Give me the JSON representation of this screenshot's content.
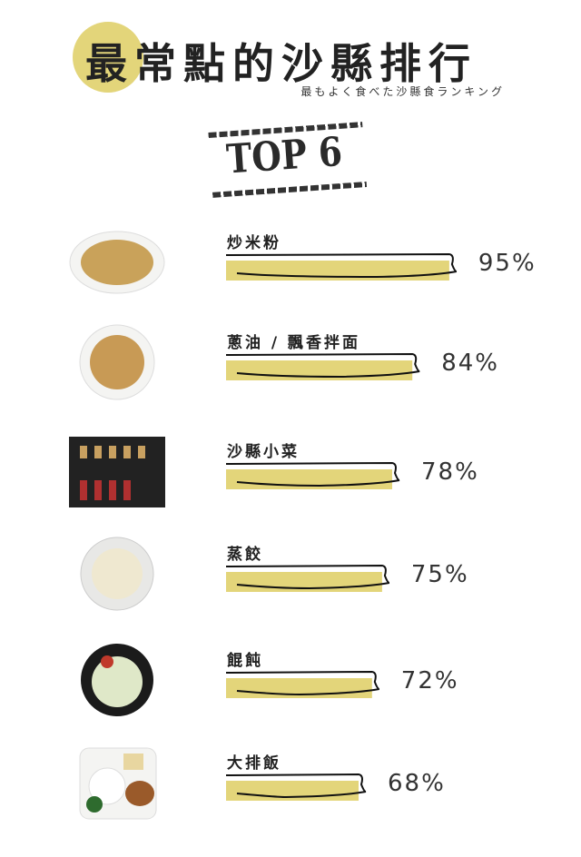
{
  "header": {
    "title_first": "最",
    "title_rest": "常點的沙縣排行",
    "subtitle": "最もよく食べた沙縣食ランキング",
    "badge": "TOP 6"
  },
  "colors": {
    "accent": "#e3d57a",
    "ink": "#222222"
  },
  "chart_data": {
    "type": "bar",
    "categories": [
      "炒米粉",
      "蔥油 / 飄香拌面",
      "沙縣小菜",
      "蒸餃",
      "餛飩",
      "大排飯"
    ],
    "values": [
      95,
      84,
      78,
      75,
      72,
      68
    ],
    "labels": [
      "95%",
      "84%",
      "78%",
      "75%",
      "72%",
      "68%"
    ],
    "title": "最常點的沙縣排行",
    "orientation": "horizontal"
  }
}
